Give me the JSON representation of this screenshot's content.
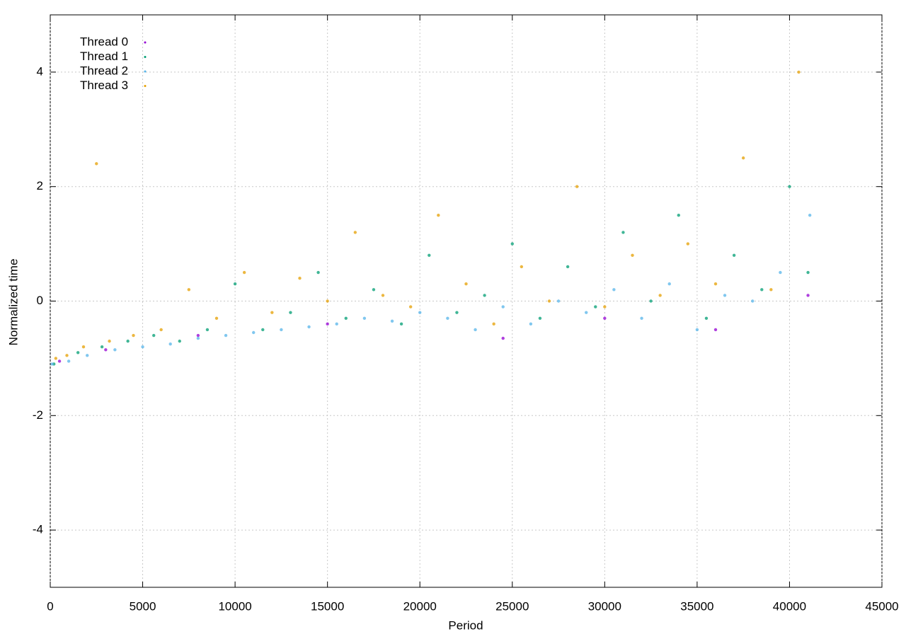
{
  "chart_data": {
    "type": "scatter",
    "xlabel": "Period",
    "ylabel": "Normalized time",
    "xlim": [
      0,
      45000
    ],
    "ylim": [
      -5,
      5
    ],
    "xticks": [
      0,
      5000,
      10000,
      15000,
      20000,
      25000,
      30000,
      35000,
      40000,
      45000
    ],
    "yticks": [
      -4,
      -2,
      0,
      2,
      4
    ],
    "grid": true,
    "legend": "upper-left",
    "series": [
      {
        "name": "Thread 0",
        "color": "#9400d3",
        "x": [
          500,
          3000,
          8000,
          15000,
          24500,
          30000,
          36000,
          41000
        ],
        "values": [
          -1.05,
          -0.85,
          -0.6,
          -0.4,
          -0.65,
          -0.3,
          -0.5,
          0.1
        ]
      },
      {
        "name": "Thread 1",
        "color": "#009e73",
        "x": [
          200,
          1500,
          2800,
          4200,
          5600,
          7000,
          8500,
          10000,
          11500,
          13000,
          14500,
          16000,
          17500,
          19000,
          20500,
          22000,
          23500,
          25000,
          26500,
          28000,
          29500,
          31000,
          32500,
          34000,
          35500,
          37000,
          38500,
          40000,
          41000
        ],
        "values": [
          -1.1,
          -0.9,
          -0.8,
          -0.7,
          -0.6,
          -0.7,
          -0.5,
          0.3,
          -0.5,
          -0.2,
          0.5,
          -0.3,
          0.2,
          -0.4,
          0.8,
          -0.2,
          0.1,
          1.0,
          -0.3,
          0.6,
          -0.1,
          1.2,
          0.0,
          1.5,
          -0.3,
          0.8,
          0.2,
          2.0,
          0.5
        ]
      },
      {
        "name": "Thread 2",
        "color": "#56b4e9",
        "x": [
          100,
          1000,
          2000,
          3500,
          5000,
          6500,
          8000,
          9500,
          11000,
          12500,
          14000,
          15500,
          17000,
          18500,
          20000,
          21500,
          23000,
          24500,
          26000,
          27500,
          29000,
          30500,
          32000,
          33500,
          35000,
          36500,
          38000,
          39500,
          41100
        ],
        "values": [
          -1.1,
          -1.05,
          -0.95,
          -0.85,
          -0.8,
          -0.75,
          -0.65,
          -0.6,
          -0.55,
          -0.5,
          -0.45,
          -0.4,
          -0.3,
          -0.35,
          -0.2,
          -0.3,
          -0.5,
          -0.1,
          -0.4,
          0.0,
          -0.2,
          0.2,
          -0.3,
          0.3,
          -0.5,
          0.1,
          0.0,
          0.5,
          1.5
        ]
      },
      {
        "name": "Thread 3",
        "color": "#e69f00",
        "x": [
          300,
          900,
          1800,
          2500,
          3200,
          4500,
          6000,
          7500,
          9000,
          10500,
          12000,
          13500,
          15000,
          16500,
          18000,
          19500,
          21000,
          22500,
          24000,
          25500,
          27000,
          28500,
          30000,
          31500,
          33000,
          34500,
          36000,
          37500,
          39000,
          40500
        ],
        "values": [
          -1.0,
          -0.95,
          -0.8,
          2.4,
          -0.7,
          -0.6,
          -0.5,
          0.2,
          -0.3,
          0.5,
          -0.2,
          0.4,
          0.0,
          1.2,
          0.1,
          -0.1,
          1.5,
          0.3,
          -0.4,
          0.6,
          0.0,
          2.0,
          -0.1,
          0.8,
          0.1,
          1.0,
          0.3,
          2.5,
          0.2,
          4.0
        ]
      }
    ]
  }
}
